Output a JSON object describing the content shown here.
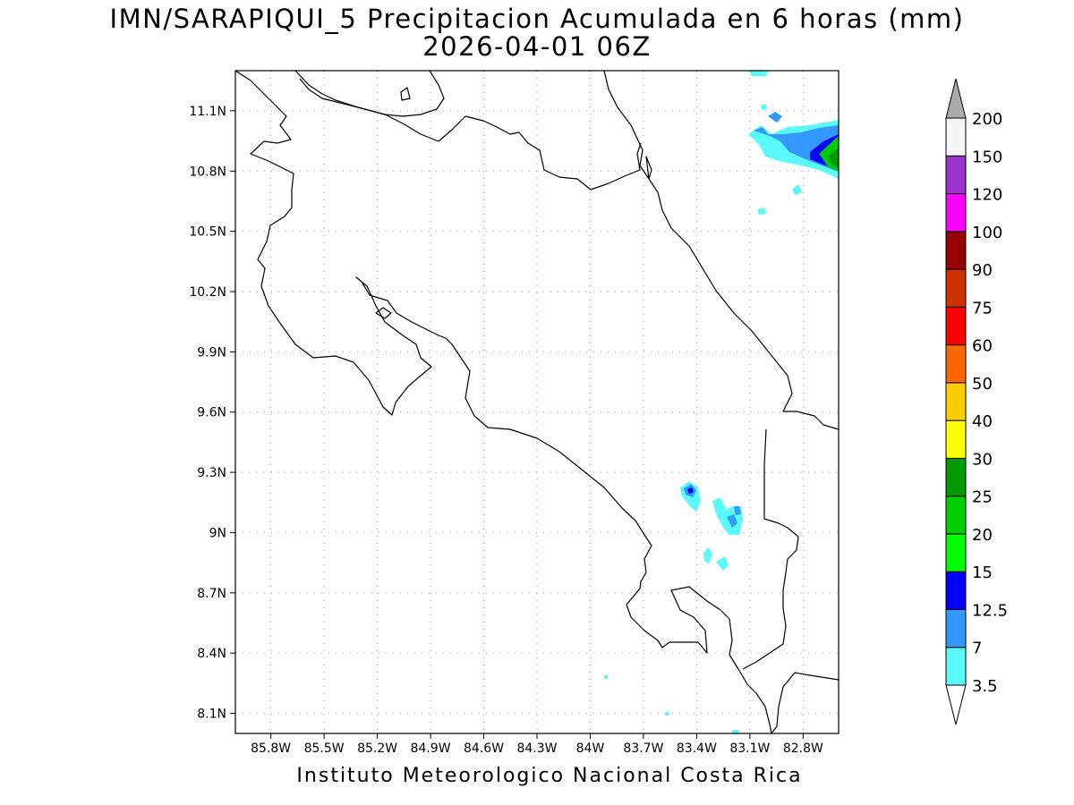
{
  "header": {
    "title": "IMN/SARAPIQUI_5 Precipitacion Acumulada en 6 horas (mm)",
    "subtitle": "2026-04-01 06Z"
  },
  "footer": {
    "credit": "Instituto Meteorologico Nacional Costa Rica"
  },
  "map": {
    "lon_range": [
      -86.0,
      -82.6
    ],
    "lat_range": [
      8.0,
      11.3
    ],
    "lon_ticks": [
      {
        "value": -85.8,
        "label": "85.8W"
      },
      {
        "value": -85.5,
        "label": "85.5W"
      },
      {
        "value": -85.2,
        "label": "85.2W"
      },
      {
        "value": -84.9,
        "label": "84.9W"
      },
      {
        "value": -84.6,
        "label": "84.6W"
      },
      {
        "value": -84.3,
        "label": "84.3W"
      },
      {
        "value": -84.0,
        "label": "84W"
      },
      {
        "value": -83.7,
        "label": "83.7W"
      },
      {
        "value": -83.4,
        "label": "83.4W"
      },
      {
        "value": -83.1,
        "label": "83.1W"
      },
      {
        "value": -82.8,
        "label": "82.8W"
      }
    ],
    "lat_ticks": [
      {
        "value": 8.1,
        "label": "8.1N"
      },
      {
        "value": 8.4,
        "label": "8.4N"
      },
      {
        "value": 8.7,
        "label": "8.7N"
      },
      {
        "value": 9.0,
        "label": "9N"
      },
      {
        "value": 9.3,
        "label": "9.3N"
      },
      {
        "value": 9.6,
        "label": "9.6N"
      },
      {
        "value": 9.9,
        "label": "9.9N"
      },
      {
        "value": 10.2,
        "label": "10.2N"
      },
      {
        "value": 10.5,
        "label": "10.5N"
      },
      {
        "value": 10.8,
        "label": "10.8N"
      },
      {
        "value": 11.1,
        "label": "11.1N"
      }
    ],
    "grid": true,
    "precip_cells": [
      {
        "lon": -82.65,
        "lat": 10.93,
        "value": 20
      },
      {
        "lon": -82.62,
        "lat": 10.95,
        "value": 25
      },
      {
        "lon": -82.7,
        "lat": 10.97,
        "value": 12.5
      },
      {
        "lon": -82.76,
        "lat": 10.9,
        "value": 12.5
      },
      {
        "lon": -82.8,
        "lat": 11.0,
        "value": 7
      },
      {
        "lon": -82.9,
        "lat": 11.02,
        "value": 7
      },
      {
        "lon": -83.03,
        "lat": 11.02,
        "value": 7
      },
      {
        "lon": -83.0,
        "lat": 11.09,
        "value": 7
      },
      {
        "lon": -83.36,
        "lat": 9.2,
        "value": 12.5
      },
      {
        "lon": -83.1,
        "lat": 9.07,
        "value": 7
      },
      {
        "lon": -83.07,
        "lat": 9.11,
        "value": 7
      }
    ]
  },
  "colorbar": {
    "levels": [
      "3.5",
      "7",
      "12.5",
      "15",
      "20",
      "25",
      "30",
      "40",
      "50",
      "60",
      "75",
      "90",
      "100",
      "120",
      "150",
      "200"
    ],
    "colors": [
      "#5afafa",
      "#3399ff",
      "#0000ff",
      "#00ff00",
      "#00cc00",
      "#009900",
      "#ffff00",
      "#ffcc00",
      "#ff6600",
      "#ff0000",
      "#cc3300",
      "#990000",
      "#ff00ff",
      "#9933cc",
      "#f5f5f5",
      "#aaaaaa"
    ]
  }
}
